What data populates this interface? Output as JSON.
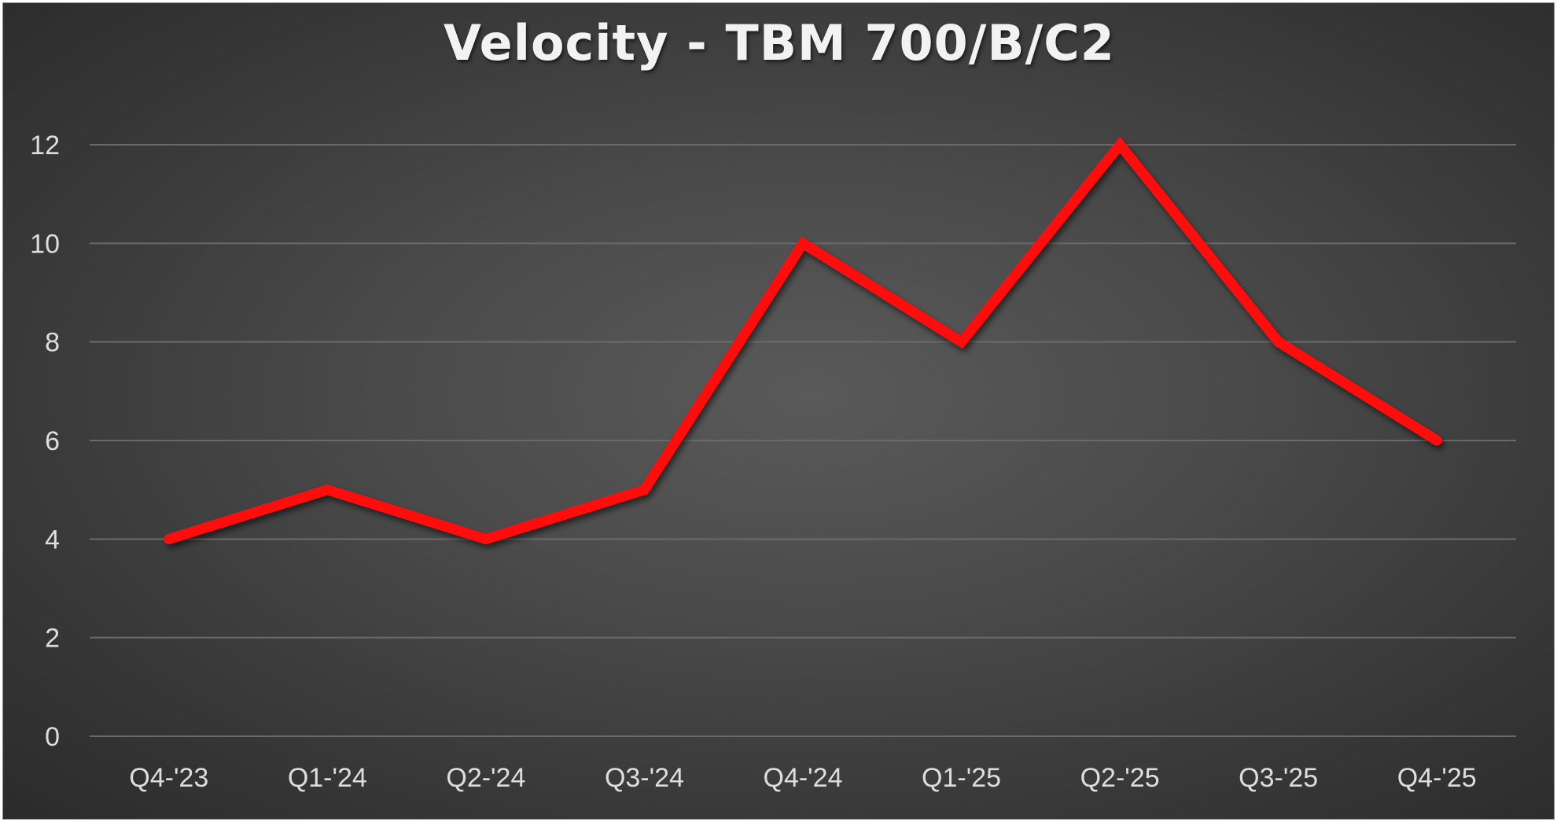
{
  "chart_data": {
    "type": "line",
    "title": "Velocity - TBM 700/B/C2",
    "xlabel": "",
    "ylabel": "",
    "categories": [
      "Q4-'23",
      "Q1-'24",
      "Q2-'24",
      "Q3-'24",
      "Q4-'24",
      "Q1-'25",
      "Q2-'25",
      "Q3-'25",
      "Q4-'25"
    ],
    "series": [
      {
        "values": [
          4,
          5,
          4,
          5,
          10,
          8,
          12,
          8,
          6
        ],
        "color": "#ff1111"
      }
    ],
    "ylim": [
      0,
      12
    ],
    "yticks": [
      0,
      2,
      4,
      6,
      8,
      10,
      12
    ],
    "grid": true,
    "legend": "none",
    "background": "dark-gradient"
  }
}
